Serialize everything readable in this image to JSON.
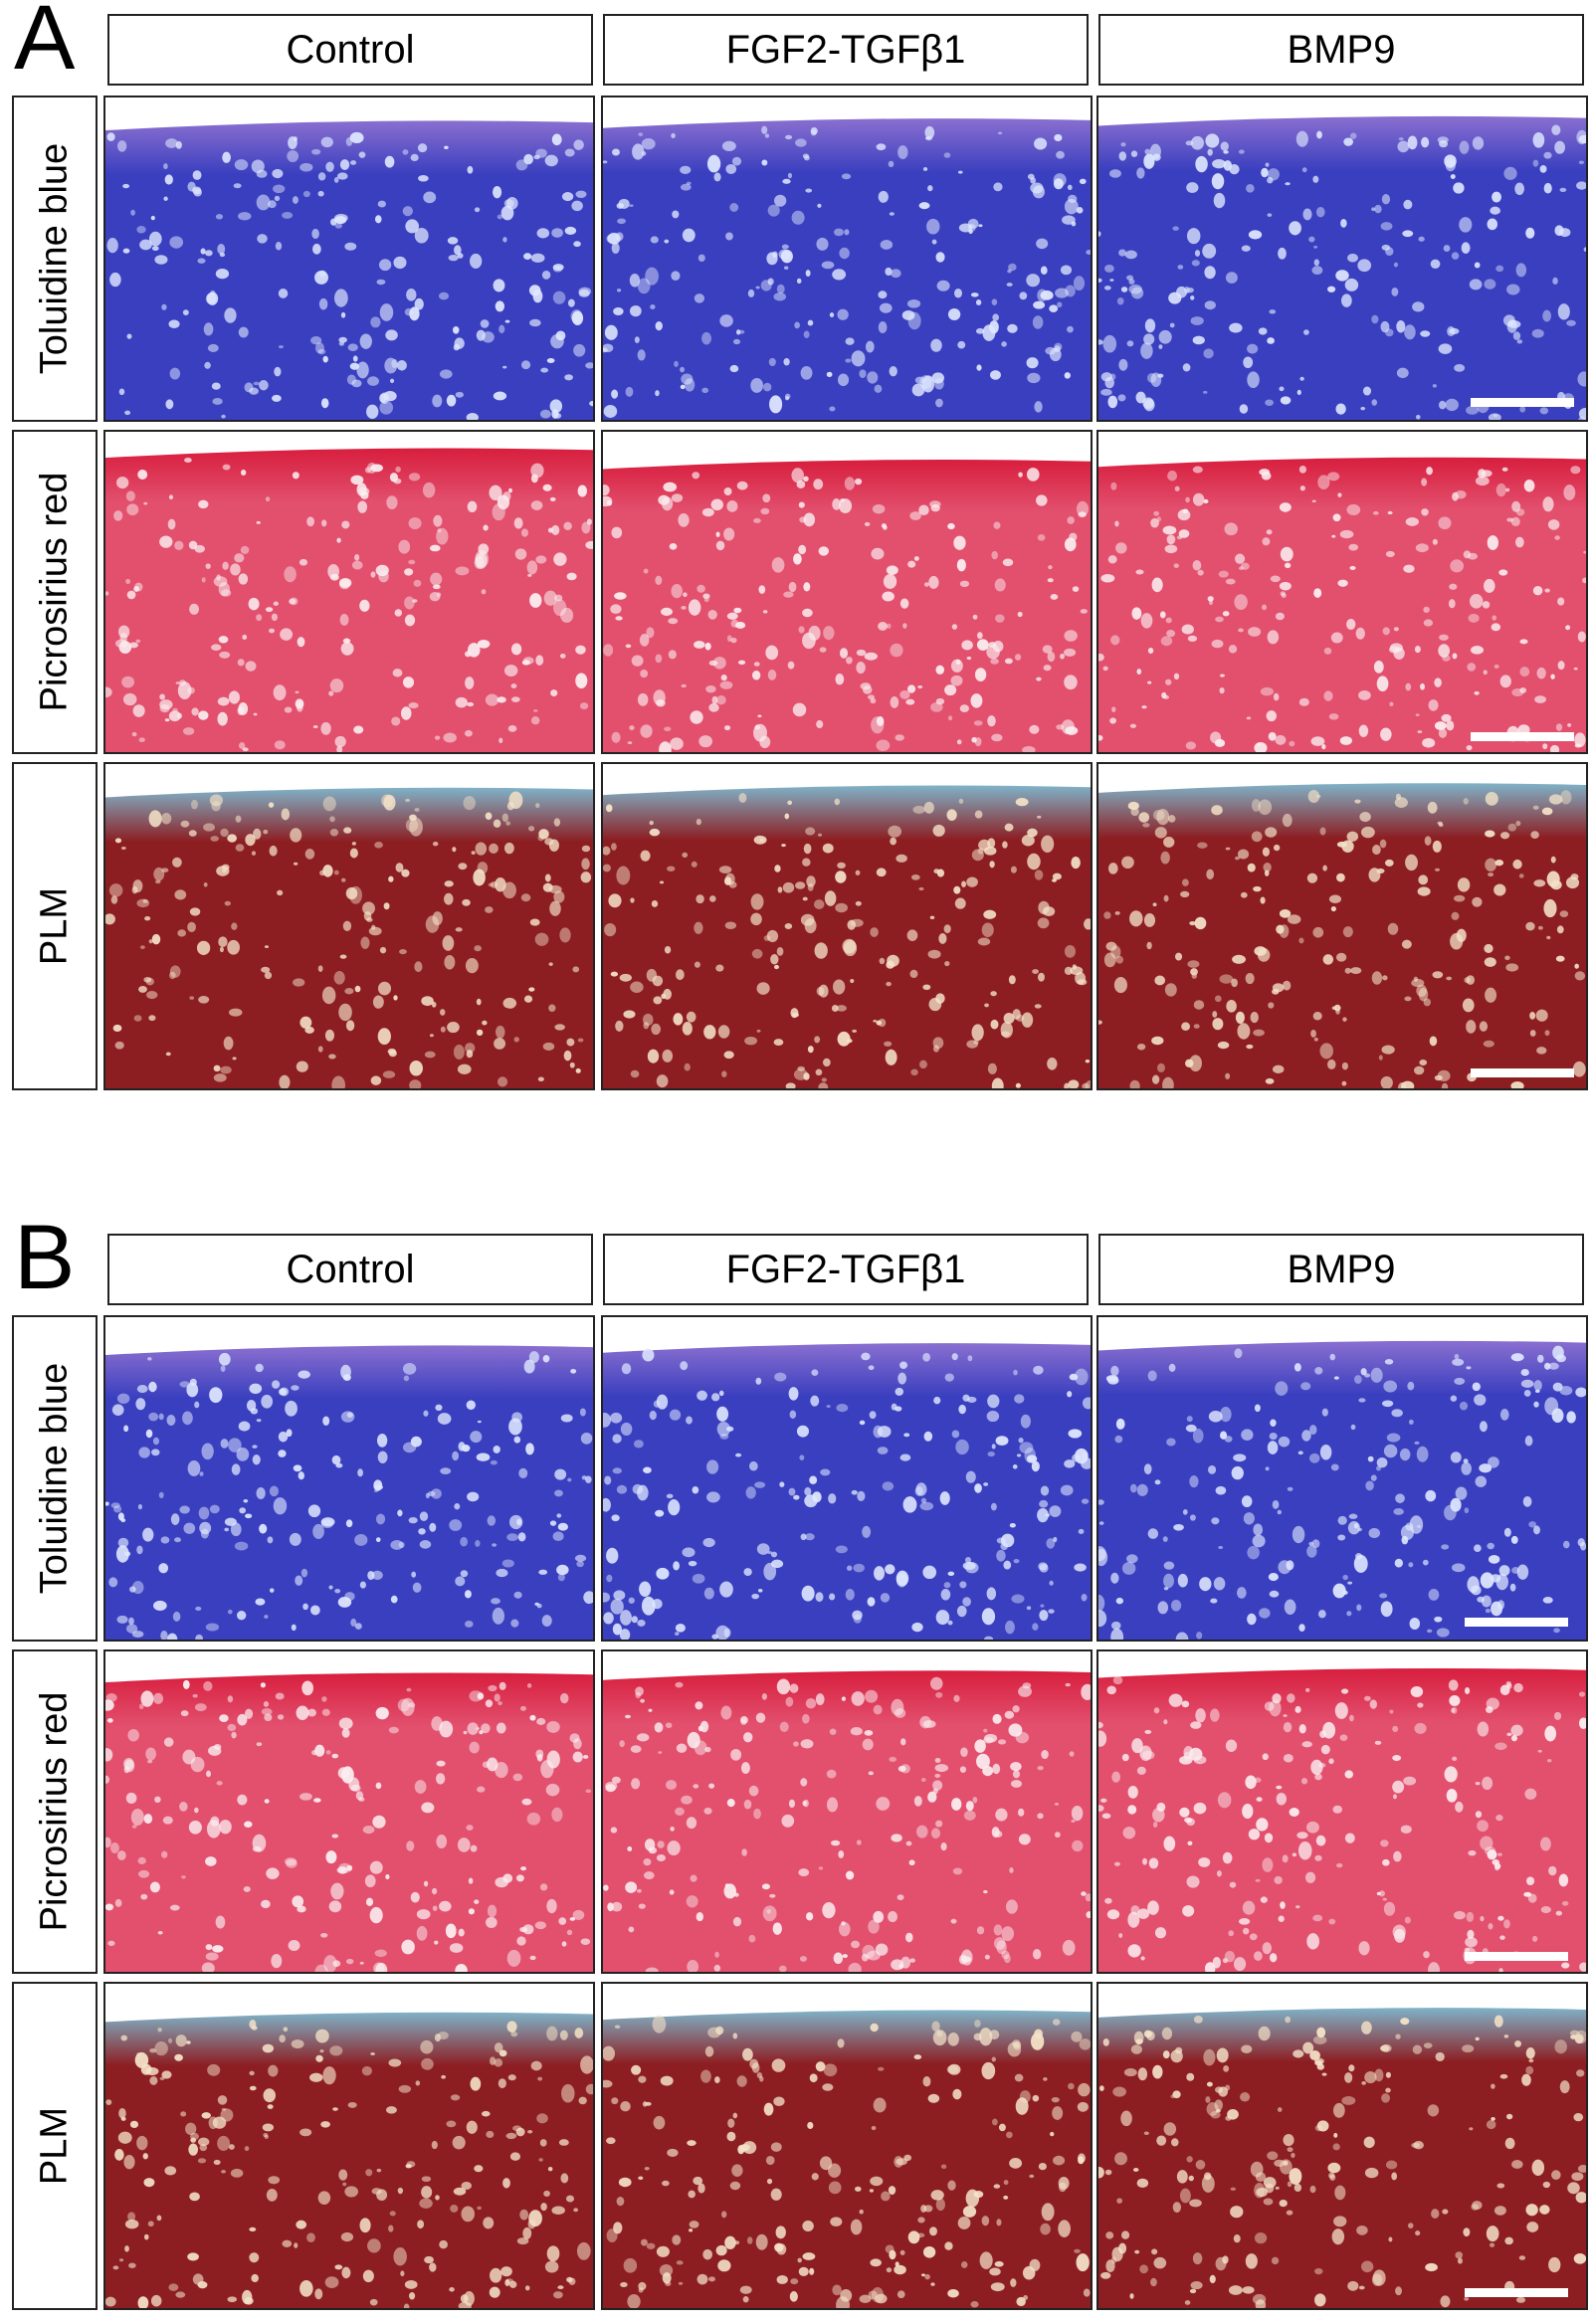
{
  "panels": [
    {
      "letter": "A",
      "columns": [
        "Control",
        "FGF2-TGFβ1",
        "BMP9"
      ],
      "rows": [
        "Toluidine blue",
        "Picrosirius red",
        "PLM"
      ]
    },
    {
      "letter": "B",
      "columns": [
        "Control",
        "FGF2-TGFβ1",
        "BMP9"
      ],
      "rows": [
        "Toluidine blue",
        "Picrosirius red",
        "PLM"
      ]
    }
  ],
  "stain_colors": {
    "toluidine_blue": {
      "matrix": "#3a3fbf",
      "surface": "#8a6fd0",
      "cells": "#dfe8ff"
    },
    "picrosirius_red": {
      "matrix": "#e2506e",
      "surface": "#d81e3e",
      "cells": "#fbeef0"
    },
    "plm": {
      "matrix": "#8c1e22",
      "surface": "#7fb2c8",
      "cells": "#f4e2c8"
    }
  }
}
